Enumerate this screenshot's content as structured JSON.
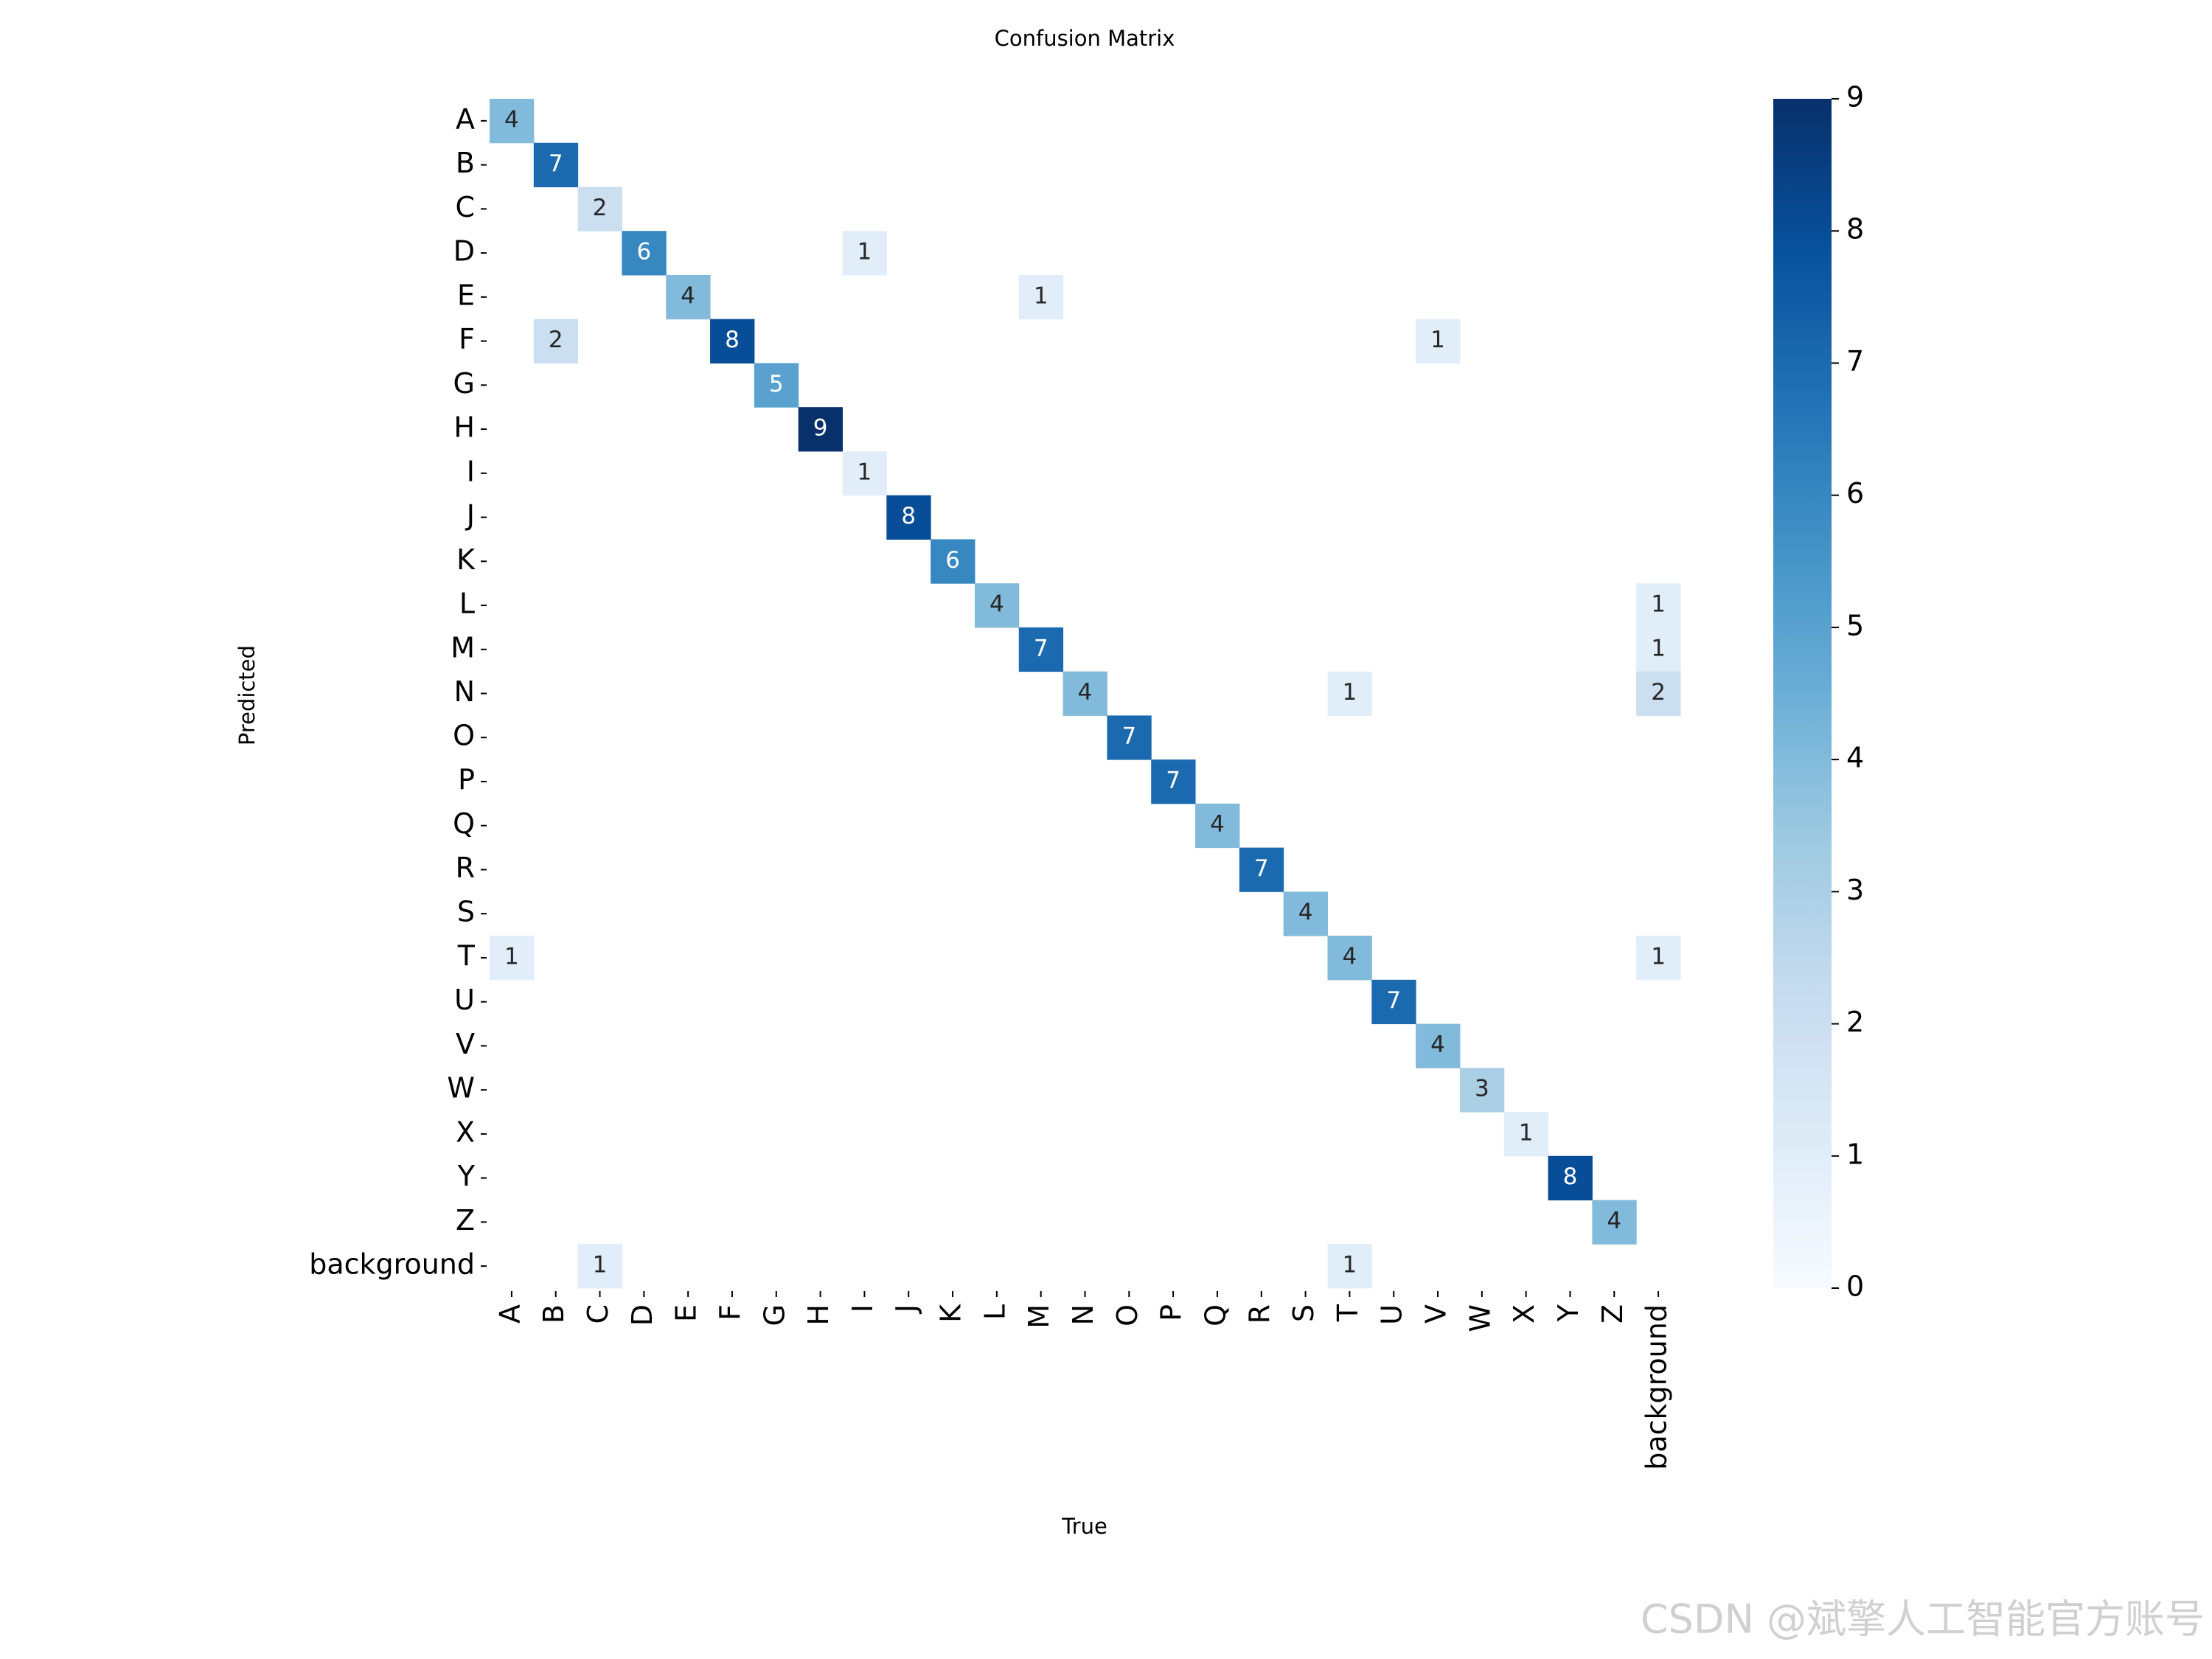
{
  "chart_data": {
    "type": "heatmap",
    "title": "Confusion Matrix",
    "x_label": "True",
    "y_label": "Predicted",
    "colormap": "Blues",
    "clim": [
      0,
      9
    ],
    "cticks": [
      0,
      1,
      2,
      3,
      4,
      5,
      6,
      7,
      8,
      9
    ],
    "x_categories": [
      "A",
      "B",
      "C",
      "D",
      "E",
      "F",
      "G",
      "H",
      "I",
      "J",
      "K",
      "L",
      "M",
      "N",
      "O",
      "P",
      "Q",
      "R",
      "S",
      "T",
      "U",
      "V",
      "W",
      "X",
      "Y",
      "Z",
      "background"
    ],
    "y_categories": [
      "A",
      "B",
      "C",
      "D",
      "E",
      "F",
      "G",
      "H",
      "I",
      "J",
      "K",
      "L",
      "M",
      "N",
      "O",
      "P",
      "Q",
      "R",
      "S",
      "T",
      "U",
      "V",
      "W",
      "X",
      "Y",
      "Z",
      "background"
    ],
    "values": [
      [
        4,
        null,
        null,
        null,
        null,
        null,
        null,
        null,
        null,
        null,
        null,
        null,
        null,
        null,
        null,
        null,
        null,
        null,
        null,
        null,
        null,
        null,
        null,
        null,
        null,
        null,
        null
      ],
      [
        null,
        7,
        null,
        null,
        null,
        null,
        null,
        null,
        null,
        null,
        null,
        null,
        null,
        null,
        null,
        null,
        null,
        null,
        null,
        null,
        null,
        null,
        null,
        null,
        null,
        null,
        null
      ],
      [
        null,
        null,
        2,
        null,
        null,
        null,
        null,
        null,
        null,
        null,
        null,
        null,
        null,
        null,
        null,
        null,
        null,
        null,
        null,
        null,
        null,
        null,
        null,
        null,
        null,
        null,
        null
      ],
      [
        null,
        null,
        null,
        6,
        null,
        null,
        null,
        null,
        1,
        null,
        null,
        null,
        null,
        null,
        null,
        null,
        null,
        null,
        null,
        null,
        null,
        null,
        null,
        null,
        null,
        null,
        null
      ],
      [
        null,
        null,
        null,
        null,
        4,
        null,
        null,
        null,
        null,
        null,
        null,
        null,
        1,
        null,
        null,
        null,
        null,
        null,
        null,
        null,
        null,
        null,
        null,
        null,
        null,
        null,
        null
      ],
      [
        null,
        2,
        null,
        null,
        null,
        8,
        null,
        null,
        null,
        null,
        null,
        null,
        null,
        null,
        null,
        null,
        null,
        null,
        null,
        null,
        null,
        1,
        null,
        null,
        null,
        null,
        null
      ],
      [
        null,
        null,
        null,
        null,
        null,
        null,
        5,
        null,
        null,
        null,
        null,
        null,
        null,
        null,
        null,
        null,
        null,
        null,
        null,
        null,
        null,
        null,
        null,
        null,
        null,
        null,
        null
      ],
      [
        null,
        null,
        null,
        null,
        null,
        null,
        null,
        9,
        null,
        null,
        null,
        null,
        null,
        null,
        null,
        null,
        null,
        null,
        null,
        null,
        null,
        null,
        null,
        null,
        null,
        null,
        null
      ],
      [
        null,
        null,
        null,
        null,
        null,
        null,
        null,
        null,
        1,
        null,
        null,
        null,
        null,
        null,
        null,
        null,
        null,
        null,
        null,
        null,
        null,
        null,
        null,
        null,
        null,
        null,
        null
      ],
      [
        null,
        null,
        null,
        null,
        null,
        null,
        null,
        null,
        null,
        8,
        null,
        null,
        null,
        null,
        null,
        null,
        null,
        null,
        null,
        null,
        null,
        null,
        null,
        null,
        null,
        null,
        null
      ],
      [
        null,
        null,
        null,
        null,
        null,
        null,
        null,
        null,
        null,
        null,
        6,
        null,
        null,
        null,
        null,
        null,
        null,
        null,
        null,
        null,
        null,
        null,
        null,
        null,
        null,
        null,
        null
      ],
      [
        null,
        null,
        null,
        null,
        null,
        null,
        null,
        null,
        null,
        null,
        null,
        4,
        null,
        null,
        null,
        null,
        null,
        null,
        null,
        null,
        null,
        null,
        null,
        null,
        null,
        null,
        1
      ],
      [
        null,
        null,
        null,
        null,
        null,
        null,
        null,
        null,
        null,
        null,
        null,
        null,
        7,
        null,
        null,
        null,
        null,
        null,
        null,
        null,
        null,
        null,
        null,
        null,
        null,
        null,
        1
      ],
      [
        null,
        null,
        null,
        null,
        null,
        null,
        null,
        null,
        null,
        null,
        null,
        null,
        null,
        4,
        null,
        null,
        null,
        null,
        null,
        1,
        null,
        null,
        null,
        null,
        null,
        null,
        2
      ],
      [
        null,
        null,
        null,
        null,
        null,
        null,
        null,
        null,
        null,
        null,
        null,
        null,
        null,
        null,
        7,
        null,
        null,
        null,
        null,
        null,
        null,
        null,
        null,
        null,
        null,
        null,
        null
      ],
      [
        null,
        null,
        null,
        null,
        null,
        null,
        null,
        null,
        null,
        null,
        null,
        null,
        null,
        null,
        null,
        7,
        null,
        null,
        null,
        null,
        null,
        null,
        null,
        null,
        null,
        null,
        null
      ],
      [
        null,
        null,
        null,
        null,
        null,
        null,
        null,
        null,
        null,
        null,
        null,
        null,
        null,
        null,
        null,
        null,
        4,
        null,
        null,
        null,
        null,
        null,
        null,
        null,
        null,
        null,
        null
      ],
      [
        null,
        null,
        null,
        null,
        null,
        null,
        null,
        null,
        null,
        null,
        null,
        null,
        null,
        null,
        null,
        null,
        null,
        7,
        null,
        null,
        null,
        null,
        null,
        null,
        null,
        null,
        null
      ],
      [
        null,
        null,
        null,
        null,
        null,
        null,
        null,
        null,
        null,
        null,
        null,
        null,
        null,
        null,
        null,
        null,
        null,
        null,
        4,
        null,
        null,
        null,
        null,
        null,
        null,
        null,
        null
      ],
      [
        1,
        null,
        null,
        null,
        null,
        null,
        null,
        null,
        null,
        null,
        null,
        null,
        null,
        null,
        null,
        null,
        null,
        null,
        null,
        4,
        null,
        null,
        null,
        null,
        null,
        null,
        1
      ],
      [
        null,
        null,
        null,
        null,
        null,
        null,
        null,
        null,
        null,
        null,
        null,
        null,
        null,
        null,
        null,
        null,
        null,
        null,
        null,
        null,
        7,
        null,
        null,
        null,
        null,
        null,
        null
      ],
      [
        null,
        null,
        null,
        null,
        null,
        null,
        null,
        null,
        null,
        null,
        null,
        null,
        null,
        null,
        null,
        null,
        null,
        null,
        null,
        null,
        null,
        4,
        null,
        null,
        null,
        null,
        null
      ],
      [
        null,
        null,
        null,
        null,
        null,
        null,
        null,
        null,
        null,
        null,
        null,
        null,
        null,
        null,
        null,
        null,
        null,
        null,
        null,
        null,
        null,
        null,
        3,
        null,
        null,
        null,
        null
      ],
      [
        null,
        null,
        null,
        null,
        null,
        null,
        null,
        null,
        null,
        null,
        null,
        null,
        null,
        null,
        null,
        null,
        null,
        null,
        null,
        null,
        null,
        null,
        null,
        1,
        null,
        null,
        null
      ],
      [
        null,
        null,
        null,
        null,
        null,
        null,
        null,
        null,
        null,
        null,
        null,
        null,
        null,
        null,
        null,
        null,
        null,
        null,
        null,
        null,
        null,
        null,
        null,
        null,
        8,
        null,
        null
      ],
      [
        null,
        null,
        null,
        null,
        null,
        null,
        null,
        null,
        null,
        null,
        null,
        null,
        null,
        null,
        null,
        null,
        null,
        null,
        null,
        null,
        null,
        null,
        null,
        null,
        null,
        4,
        null
      ],
      [
        null,
        null,
        1,
        null,
        null,
        null,
        null,
        null,
        null,
        null,
        null,
        null,
        null,
        null,
        null,
        null,
        null,
        null,
        null,
        1,
        null,
        null,
        null,
        null,
        null,
        null,
        null
      ]
    ]
  },
  "watermark": "CSDN @斌擎人工智能官方账号"
}
